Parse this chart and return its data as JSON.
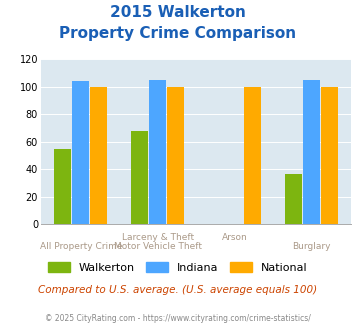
{
  "title_line1": "2015 Walkerton",
  "title_line2": "Property Crime Comparison",
  "top_labels": [
    "",
    "Larceny & Theft",
    "Arson",
    ""
  ],
  "bot_labels": [
    "All Property Crime",
    "Motor Vehicle Theft",
    "",
    "Burglary"
  ],
  "walkerton": [
    55,
    68,
    0,
    37
  ],
  "indiana": [
    104,
    105,
    0,
    105
  ],
  "national": [
    100,
    100,
    100,
    100
  ],
  "colors": {
    "walkerton": "#7db510",
    "indiana": "#4da6ff",
    "national": "#ffaa00"
  },
  "ylim": [
    0,
    120
  ],
  "yticks": [
    0,
    20,
    40,
    60,
    80,
    100,
    120
  ],
  "bg_color": "#dce8f0",
  "note": "Compared to U.S. average. (U.S. average equals 100)",
  "copyright": "© 2025 CityRating.com - https://www.cityrating.com/crime-statistics/",
  "title_color": "#1a5fb5",
  "note_color": "#cc4400",
  "copyright_color": "#888888",
  "label_color": "#aa9988"
}
